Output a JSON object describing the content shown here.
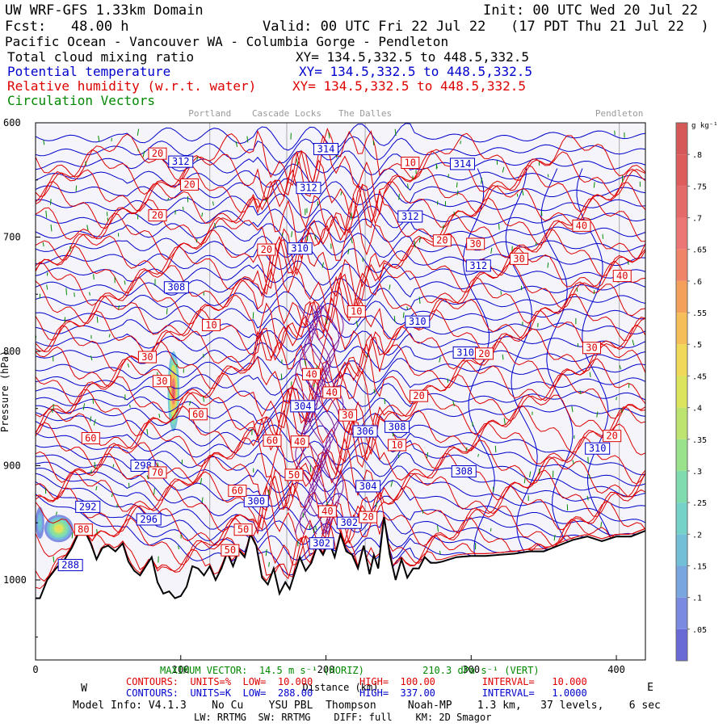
{
  "header": {
    "model": "UW WRF-GFS 1.33km Domain",
    "init": "Init: 00 UTC Wed 20 Jul 22",
    "fcst": "Fcst:   48.00 h",
    "valid": "Valid: 00 UTC Fri 22 Jul 22   (17 PDT Thu 21 Jul 22  )",
    "region": "Pacific Ocean - Vancouver WA - Columbia Gorge - Pendleton",
    "fields": [
      {
        "name": "Total cloud mixing ratio",
        "xy": "XY= 134.5,332.5 to 448.5,332.5",
        "color": "#000000"
      },
      {
        "name": "Potential temperature",
        "xy": "XY= 134.5,332.5 to 448.5,332.5",
        "color": "#0000cc"
      },
      {
        "name": "Relative humidity (w.r.t. water)",
        "xy": "XY= 134.5,332.5 to 448.5,332.5",
        "color": "#dd0000"
      },
      {
        "name": "Circulation Vectors",
        "xy": "",
        "color": "#008800"
      }
    ]
  },
  "places": [
    {
      "label": "Portland",
      "distance": 120
    },
    {
      "label": "Cascade Locks",
      "distance": 173
    },
    {
      "label": "The Dalles",
      "distance": 227
    },
    {
      "label": "Pendleton",
      "distance": 402
    }
  ],
  "chart_data": {
    "type": "line",
    "xlim": [
      0,
      420
    ],
    "ylim": [
      1070,
      600
    ],
    "x_ticks": [
      0,
      100,
      200,
      300,
      400
    ],
    "x_tick_labels": [
      "0",
      "100",
      "200",
      "300",
      "400"
    ],
    "y_ticks": [
      600,
      700,
      800,
      900,
      1000
    ],
    "y_tick_labels": [
      "600",
      "700",
      "800",
      "900",
      "1000"
    ],
    "ylabel": "Pressure (hPa)",
    "xlabel": "Distance (km)",
    "west_label": "W",
    "east_label": "E",
    "terrain": {
      "x": [
        0,
        3,
        8,
        14,
        20,
        25,
        30,
        35,
        38,
        42,
        46,
        50,
        55,
        60,
        64,
        68,
        72,
        76,
        80,
        84,
        88,
        92,
        96,
        100,
        104,
        108,
        112,
        116,
        120,
        124,
        128,
        132,
        136,
        140,
        144,
        148,
        152,
        156,
        160,
        164,
        168,
        172,
        175,
        178,
        182,
        186,
        190,
        194,
        198,
        202,
        206,
        210,
        214,
        218,
        222,
        226,
        230,
        233,
        236,
        240,
        244,
        248,
        252,
        256,
        260,
        264,
        268,
        272,
        276,
        280,
        290,
        300,
        310,
        320,
        330,
        340,
        350,
        360,
        370,
        380,
        390,
        400,
        410,
        420
      ],
      "pressure": [
        1016,
        1016,
        1000,
        990,
        982,
        972,
        958,
        960,
        968,
        982,
        972,
        970,
        975,
        968,
        984,
        992,
        996,
        988,
        980,
        1002,
        1012,
        1010,
        1016,
        1014,
        1006,
        988,
        990,
        996,
        988,
        1000,
        990,
        976,
        988,
        974,
        980,
        960,
        970,
        998,
        1004,
        990,
        1012,
        1002,
        1008,
        996,
        980,
        992,
        985,
        970,
        978,
        966,
        980,
        960,
        975,
        978,
        990,
        970,
        995,
        978,
        990,
        945,
        978,
        1000,
        982,
        998,
        990,
        990,
        980,
        985,
        985,
        984,
        980,
        979,
        979,
        978,
        977,
        975,
        975,
        970,
        965,
        962,
        966,
        962,
        962,
        957
      ]
    },
    "theta_labels": [
      {
        "x": 100,
        "p": 634,
        "v": "312"
      },
      {
        "x": 200,
        "p": 623,
        "v": "314"
      },
      {
        "x": 188,
        "p": 657,
        "v": "312"
      },
      {
        "x": 294,
        "p": 636,
        "v": "314"
      },
      {
        "x": 258,
        "p": 682,
        "v": "312"
      },
      {
        "x": 182,
        "p": 710,
        "v": "310"
      },
      {
        "x": 305,
        "p": 725,
        "v": "312"
      },
      {
        "x": 97,
        "p": 744,
        "v": "308"
      },
      {
        "x": 263,
        "p": 774,
        "v": "310"
      },
      {
        "x": 296,
        "p": 801,
        "v": "310"
      },
      {
        "x": 184,
        "p": 848,
        "v": "304"
      },
      {
        "x": 227,
        "p": 870,
        "v": "306"
      },
      {
        "x": 249,
        "p": 866,
        "v": "308"
      },
      {
        "x": 387,
        "p": 885,
        "v": "310"
      },
      {
        "x": 74,
        "p": 900,
        "v": "298"
      },
      {
        "x": 295,
        "p": 905,
        "v": "308"
      },
      {
        "x": 229,
        "p": 918,
        "v": "304"
      },
      {
        "x": 152,
        "p": 931,
        "v": "300"
      },
      {
        "x": 36,
        "p": 936,
        "v": "292"
      },
      {
        "x": 78,
        "p": 947,
        "v": "296"
      },
      {
        "x": 216,
        "p": 950,
        "v": "302"
      },
      {
        "x": 197,
        "p": 968,
        "v": "302"
      },
      {
        "x": 24,
        "p": 987,
        "v": "288"
      }
    ],
    "rh_labels": [
      {
        "x": 84,
        "p": 627,
        "v": "20"
      },
      {
        "x": 106,
        "p": 654,
        "v": "20"
      },
      {
        "x": 258,
        "p": 635,
        "v": "10"
      },
      {
        "x": 84,
        "p": 681,
        "v": "20"
      },
      {
        "x": 159,
        "p": 711,
        "v": "20"
      },
      {
        "x": 280,
        "p": 703,
        "v": "20"
      },
      {
        "x": 303,
        "p": 706,
        "v": "30"
      },
      {
        "x": 333,
        "p": 719,
        "v": "30"
      },
      {
        "x": 376,
        "p": 690,
        "v": "40"
      },
      {
        "x": 404,
        "p": 734,
        "v": "40"
      },
      {
        "x": 121,
        "p": 777,
        "v": "10"
      },
      {
        "x": 221,
        "p": 765,
        "v": "10"
      },
      {
        "x": 77,
        "p": 805,
        "v": "30"
      },
      {
        "x": 87,
        "p": 826,
        "v": "30"
      },
      {
        "x": 309,
        "p": 802,
        "v": "20"
      },
      {
        "x": 383,
        "p": 797,
        "v": "30"
      },
      {
        "x": 190,
        "p": 820,
        "v": "40"
      },
      {
        "x": 204,
        "p": 836,
        "v": "40"
      },
      {
        "x": 264,
        "p": 839,
        "v": "20"
      },
      {
        "x": 112,
        "p": 855,
        "v": "60"
      },
      {
        "x": 215,
        "p": 856,
        "v": "30"
      },
      {
        "x": 38,
        "p": 876,
        "v": "60"
      },
      {
        "x": 163,
        "p": 878,
        "v": "60"
      },
      {
        "x": 182,
        "p": 879,
        "v": "40"
      },
      {
        "x": 249,
        "p": 882,
        "v": "10"
      },
      {
        "x": 397,
        "p": 874,
        "v": "20"
      },
      {
        "x": 84,
        "p": 906,
        "v": "70"
      },
      {
        "x": 178,
        "p": 908,
        "v": "50"
      },
      {
        "x": 139,
        "p": 922,
        "v": "60"
      },
      {
        "x": 201,
        "p": 940,
        "v": "40"
      },
      {
        "x": 229,
        "p": 945,
        "v": "20"
      },
      {
        "x": 33,
        "p": 956,
        "v": "80"
      },
      {
        "x": 143,
        "p": 956,
        "v": "50"
      },
      {
        "x": 134,
        "p": 974,
        "v": "50"
      }
    ],
    "cloud_regions": [
      {
        "x_center": 95,
        "p_center": 835,
        "x_halfwidth": 4,
        "p_halfwidth": 35,
        "peak": 0.75
      },
      {
        "x_center": 16,
        "p_center": 955,
        "x_halfwidth": 10,
        "p_halfwidth": 12,
        "peak": 0.45
      },
      {
        "x_center": 3,
        "p_center": 950,
        "x_halfwidth": 3,
        "p_halfwidth": 14,
        "peak": 0.2
      }
    ],
    "colorbar": {
      "unit": "g kg⁻¹",
      "ticks": [
        ".05",
        ".1",
        ".15",
        ".2",
        ".25",
        ".3",
        ".35",
        ".4",
        ".45",
        ".5",
        ".55",
        ".6",
        ".65",
        ".7",
        ".75",
        ".8"
      ],
      "colors": [
        "#6a6ad6",
        "#7a8ae0",
        "#7aa6e0",
        "#72c0d8",
        "#74d2c8",
        "#80dcae",
        "#9ae28c",
        "#bde46e",
        "#dce45e",
        "#f0d858",
        "#f6be58",
        "#f4a05a",
        "#f08466",
        "#ec7676",
        "#e46a6a",
        "#dd5c5c",
        "#d65858"
      ]
    }
  },
  "footer": {
    "max_vector": "MAXIMUM VECTOR:  14.5 m s⁻¹ (HORIZ)          210.3 dPa s⁻¹ (VERT)",
    "rh_contours": "CONTOURS:  UNITS=%  LOW=  10.000        HIGH=  100.00        INTERVAL=   10.000",
    "theta_contours": "CONTOURS:  UNITS=K  LOW=  288.00        HIGH=  337.00        INTERVAL=   1.0000",
    "model_info": "Model Info: V4.1.3    No Cu    YSU PBL  Thompson     Noah-MP    1.3 km,   37 levels,    6 sec",
    "physics": "LW: RRTMG  SW: RRTMG    DIFF: full    KM: 2D Smagor"
  },
  "colors": {
    "theta": "#0000cc",
    "rh": "#dd0000",
    "vectors": "#008800",
    "terrain": "#000000",
    "background": "#f4f4fa"
  }
}
